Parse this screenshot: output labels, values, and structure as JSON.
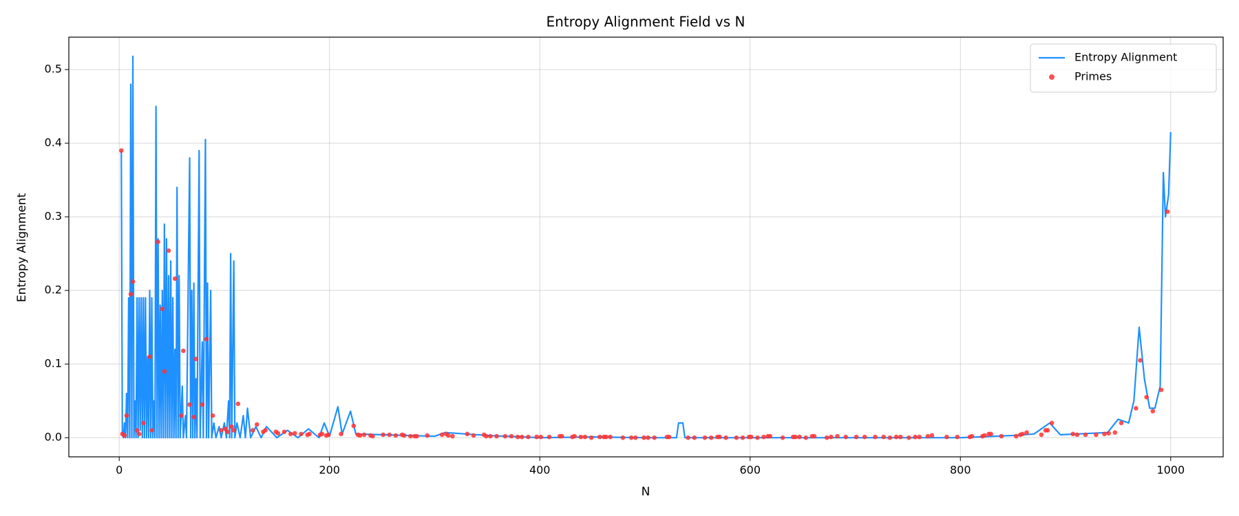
{
  "chart_data": {
    "type": "line",
    "title": "Entropy Alignment Field vs N",
    "x_label": "N",
    "y_label": "Entropy Alignment",
    "xlim": [
      -47.9,
      1049.9
    ],
    "ylim": [
      -0.026,
      0.544
    ],
    "xticks": [
      0,
      200,
      400,
      600,
      800,
      1000
    ],
    "yticks": [
      {
        "value": 0,
        "label": "0.0"
      },
      0.1,
      0.2,
      0.3,
      0.4,
      0.5
    ],
    "grid": true,
    "legend": "upper right",
    "series": [
      {
        "name": "Entropy Alignment",
        "type": "line",
        "color": "#1e90ff",
        "x": [
          2,
          3,
          4,
          5,
          6,
          7,
          8,
          9,
          10,
          11,
          12,
          13,
          14,
          15,
          16,
          17,
          18,
          19,
          20,
          21,
          22,
          23,
          24,
          25,
          26,
          27,
          28,
          29,
          30,
          31,
          32,
          33,
          34,
          35,
          36,
          37,
          38,
          39,
          40,
          41,
          42,
          43,
          44,
          45,
          46,
          47,
          48,
          49,
          50,
          51,
          52,
          53,
          54,
          55,
          56,
          57,
          58,
          60,
          61,
          63,
          64,
          67,
          68,
          69,
          70,
          71,
          72,
          73,
          74,
          76,
          77,
          79,
          80,
          82,
          83,
          84,
          85,
          87,
          88,
          90,
          92,
          95,
          97,
          100,
          102,
          104,
          105,
          106,
          107,
          109,
          110,
          112,
          115,
          118,
          120,
          122,
          125,
          130,
          135,
          140,
          150,
          160,
          170,
          180,
          190,
          195,
          200,
          208,
          212,
          220,
          225,
          250,
          300,
          310,
          350,
          400,
          450,
          500,
          530,
          532,
          536,
          538,
          600,
          700,
          800,
          850,
          870,
          885,
          895,
          940,
          950,
          960,
          965,
          970,
          975,
          980,
          985,
          990,
          993,
          995,
          998,
          1000
        ],
        "values": [
          0.39,
          0.005,
          0.0,
          0.02,
          0.0,
          0.06,
          0.0,
          0.19,
          0.0,
          0.48,
          0.0,
          0.518,
          0.0,
          0.05,
          0.0,
          0.19,
          0.0,
          0.19,
          0.01,
          0.19,
          0.0,
          0.19,
          0.0,
          0.19,
          0.0,
          0.11,
          0.0,
          0.2,
          0.0,
          0.19,
          0.0,
          0.05,
          0.0,
          0.45,
          0.0,
          0.27,
          0.0,
          0.18,
          0.0,
          0.2,
          0.0,
          0.29,
          0.0,
          0.27,
          0.0,
          0.22,
          0.0,
          0.24,
          0.0,
          0.19,
          0.0,
          0.12,
          0.0,
          0.34,
          0.0,
          0.22,
          0.0,
          0.07,
          0.0,
          0.03,
          0.0,
          0.38,
          0.0,
          0.2,
          0.0,
          0.21,
          0.0,
          0.08,
          0.0,
          0.39,
          0.0,
          0.13,
          0.0,
          0.405,
          0.0,
          0.21,
          0.0,
          0.2,
          0.0,
          0.02,
          0.0,
          0.015,
          0.0,
          0.02,
          0.0,
          0.05,
          0.0,
          0.25,
          0.0,
          0.24,
          0.0,
          0.02,
          0.0,
          0.03,
          0.0,
          0.04,
          0.0,
          0.015,
          0.0,
          0.015,
          0.0,
          0.01,
          0.0,
          0.012,
          0.0,
          0.02,
          0.002,
          0.042,
          0.005,
          0.036,
          0.005,
          0.004,
          0.002,
          0.007,
          0.003,
          0.0,
          0.001,
          0.0,
          0.0,
          0.02,
          0.02,
          0.0,
          0.0,
          0.0,
          0.0,
          0.003,
          0.005,
          0.02,
          0.004,
          0.007,
          0.025,
          0.02,
          0.05,
          0.15,
          0.08,
          0.04,
          0.04,
          0.07,
          0.36,
          0.3,
          0.33,
          0.415
        ]
      },
      {
        "name": "Primes",
        "type": "scatter",
        "color": "#ff3333",
        "x": [
          2,
          3,
          5,
          7,
          11,
          13,
          17,
          19,
          23,
          29,
          31,
          37,
          41,
          43,
          47,
          53,
          59,
          61,
          67,
          71,
          73,
          79,
          83,
          89,
          97,
          101,
          103,
          107,
          109,
          113,
          127,
          131,
          137,
          139,
          149,
          151,
          157,
          163,
          167,
          173,
          179,
          181,
          191,
          193,
          197,
          199,
          211,
          223,
          227,
          229,
          233,
          239,
          241,
          251,
          257,
          263,
          269,
          271,
          277,
          281,
          283,
          293,
          307,
          311,
          313,
          317,
          331,
          337,
          347,
          349,
          353,
          359,
          367,
          373,
          379,
          383,
          389,
          397,
          401,
          409,
          419,
          421,
          431,
          433,
          439,
          443,
          449,
          457,
          461,
          463,
          467,
          479,
          487,
          491,
          499,
          503,
          509,
          521,
          523,
          541,
          547,
          557,
          563,
          569,
          571,
          577,
          587,
          593,
          599,
          601,
          607,
          613,
          617,
          619,
          631,
          641,
          643,
          647,
          653,
          659,
          661,
          673,
          677,
          683,
          691,
          701,
          709,
          719,
          727,
          733,
          739,
          743,
          751,
          757,
          761,
          769,
          773,
          787,
          797,
          809,
          811,
          821,
          823,
          827,
          829,
          839,
          853,
          857,
          859,
          863,
          877,
          881,
          883,
          887,
          907,
          911,
          919,
          929,
          937,
          941,
          947,
          953,
          967,
          971,
          977,
          983,
          991,
          997
        ],
        "values": [
          0.39,
          0.005,
          0.003,
          0.03,
          0.195,
          0.212,
          0.01,
          0.005,
          0.02,
          0.11,
          0.01,
          0.266,
          0.175,
          0.09,
          0.254,
          0.216,
          0.03,
          0.118,
          0.045,
          0.028,
          0.107,
          0.045,
          0.134,
          0.03,
          0.01,
          0.012,
          0.008,
          0.015,
          0.01,
          0.046,
          0.01,
          0.018,
          0.008,
          0.01,
          0.008,
          0.006,
          0.008,
          0.005,
          0.006,
          0.005,
          0.004,
          0.005,
          0.004,
          0.005,
          0.003,
          0.004,
          0.005,
          0.016,
          0.004,
          0.003,
          0.004,
          0.003,
          0.002,
          0.004,
          0.004,
          0.003,
          0.004,
          0.003,
          0.002,
          0.002,
          0.002,
          0.003,
          0.004,
          0.005,
          0.003,
          0.002,
          0.005,
          0.003,
          0.004,
          0.002,
          0.002,
          0.002,
          0.002,
          0.002,
          0.001,
          0.001,
          0.001,
          0.001,
          0.001,
          0.001,
          0.002,
          0.002,
          0.001,
          0.002,
          0.001,
          0.001,
          0.0,
          0.001,
          0.001,
          0.001,
          0.001,
          0.0,
          0.0,
          0.0,
          0.0,
          0.0,
          0.0,
          0.001,
          0.001,
          0.0,
          0.0,
          0.0,
          0.0,
          0.001,
          0.001,
          0.0,
          0.0,
          0.0,
          0.001,
          0.001,
          0.0,
          0.001,
          0.002,
          0.002,
          0.0,
          0.001,
          0.001,
          0.001,
          0.0,
          0.002,
          0.002,
          0.0,
          0.001,
          0.002,
          0.001,
          0.001,
          0.001,
          0.001,
          0.001,
          0.0,
          0.001,
          0.001,
          0.0,
          0.001,
          0.001,
          0.002,
          0.003,
          0.001,
          0.001,
          0.001,
          0.002,
          0.002,
          0.003,
          0.005,
          0.005,
          0.002,
          0.002,
          0.004,
          0.005,
          0.007,
          0.004,
          0.01,
          0.01,
          0.02,
          0.005,
          0.004,
          0.004,
          0.004,
          0.005,
          0.006,
          0.007,
          0.02,
          0.04,
          0.105,
          0.055,
          0.036,
          0.065,
          0.307
        ]
      }
    ]
  }
}
